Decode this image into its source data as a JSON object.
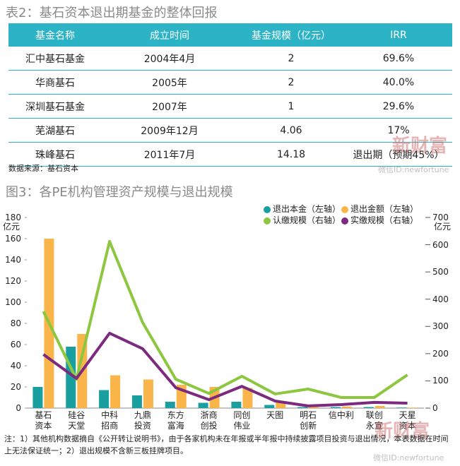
{
  "table_title": "表2：基石资本退出期基金的整体回报",
  "table": {
    "header": [
      "基金名称",
      "成立时间",
      "基金规模（亿元）",
      "IRR"
    ],
    "rows": [
      [
        "汇中基石基金",
        "2004年4月",
        "2",
        "69.6%"
      ],
      [
        "华商基石",
        "2005年",
        "2",
        "40.0%"
      ],
      [
        "深圳基石基金",
        "2007年",
        "1",
        "29.6%"
      ],
      [
        "芜湖基石",
        "2009年12月",
        "4.06",
        "17%"
      ],
      [
        "珠峰基石",
        "2011年7月",
        "14.18",
        "退出期（预期45%）"
      ]
    ]
  },
  "source": "数据来源：基石资本",
  "watermark": {
    "brand": "新财富",
    "wechat": "微信ID:newfortune"
  },
  "chart_data": {
    "type": "bar",
    "title": "图3：各PE机构管理资产规模与退出规模",
    "y_unit": "亿元",
    "y2_unit": "亿元",
    "categories": [
      "基石\n资本",
      "硅谷\n天堂",
      "中科\n招商",
      "九鼎\n投资",
      "东方\n富海",
      "浙商\n创投",
      "同创\n伟业",
      "天图",
      "明石\n创新",
      "信中利",
      "联创\n永宣",
      "天星\n资本"
    ],
    "series": [
      {
        "name": "退出本金（左轴）",
        "color": "#1a9fa0",
        "values": [
          20,
          58,
          17,
          12,
          6,
          5,
          6,
          3,
          1,
          1,
          1,
          0.5
        ]
      },
      {
        "name": "退出金额（左轴）",
        "color": "#f9b54a",
        "values": [
          160,
          70,
          31,
          27,
          22,
          20,
          19,
          5,
          1,
          1.5,
          2,
          0.5
        ]
      },
      {
        "name": "认缴规模（右轴）",
        "color": "#8dc63f",
        "type": "line",
        "axis": "y2",
        "values": [
          355,
          106,
          612,
          314,
          106,
          54,
          117,
          52,
          70,
          39,
          39,
          122
        ]
      },
      {
        "name": "实缴规模（右轴）",
        "color": "#7b2a7e",
        "type": "line",
        "axis": "y2",
        "values": [
          197,
          109,
          275,
          218,
          75,
          31,
          80,
          26,
          8,
          13,
          21,
          18
        ]
      }
    ],
    "ylim": [
      0,
      180
    ],
    "yticks": [
      0,
      20,
      40,
      60,
      80,
      100,
      120,
      140,
      160,
      180
    ],
    "y2lim": [
      0,
      700
    ],
    "y2ticks": [
      0,
      100,
      200,
      300,
      400,
      500,
      600,
      700
    ]
  },
  "note": "注：1）其他机构数据摘自《公开转让说明书》，由于各家机构未在年报或半年报中持续披露项目投资与退出情况，本表数据在时间上无法保证统一；2）退出规模不含新三板挂牌项目。"
}
